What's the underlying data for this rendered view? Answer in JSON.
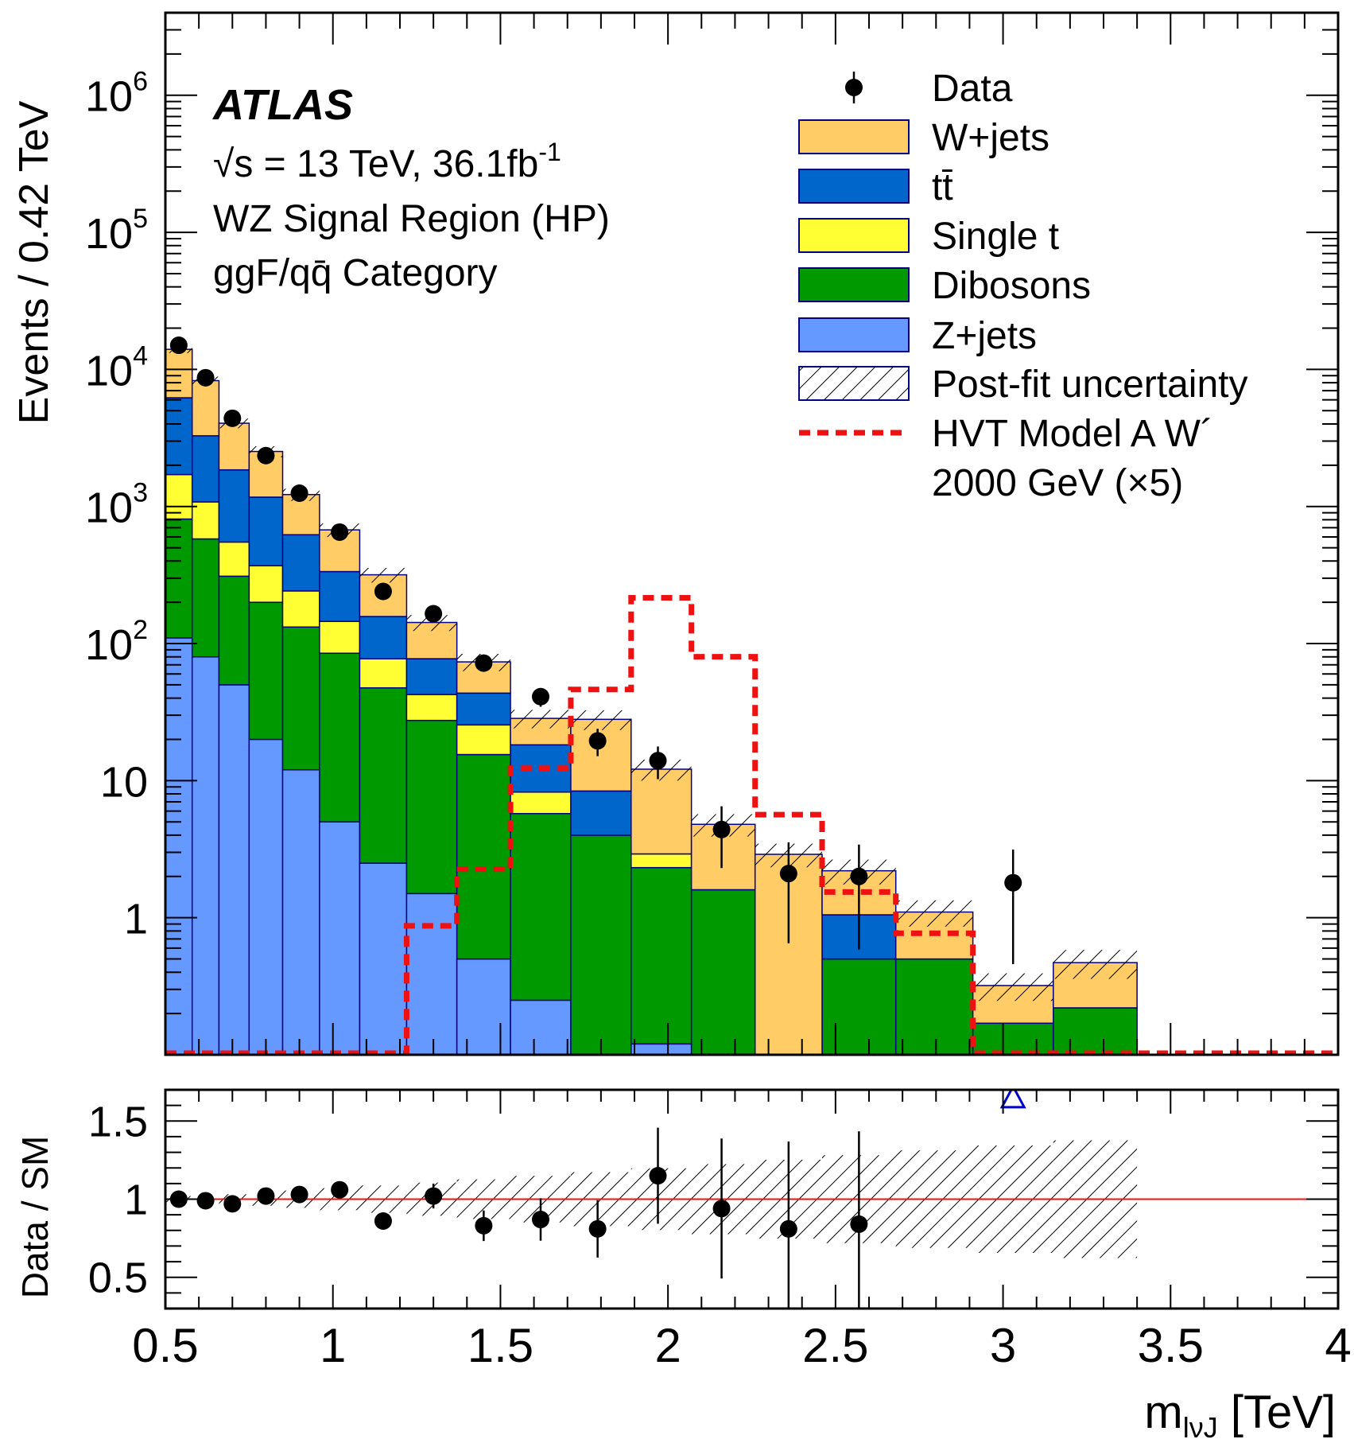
{
  "chart_data": {
    "type": "bar",
    "experiment_label": "ATLAS",
    "info_lines": [
      "√s = 13 TeV, 36.1fb",
      "WZ Signal Region (HP)",
      "ggF/qq̄ Category"
    ],
    "lumi_superscript": "-1",
    "ylabel": "Events / 0.42 TeV",
    "ratio_ylabel": "Data / SM",
    "xlabel": "m",
    "xlabel_sub": "lνJ",
    "xlabel_unit": "[TeV]",
    "xlim": [
      0.5,
      4.0
    ],
    "ylim": [
      0.1,
      4000000
    ],
    "ylog": true,
    "ratio_ylim": [
      0.3,
      1.7
    ],
    "x_ticks": [
      "0.5",
      "1",
      "1.5",
      "2",
      "2.5",
      "3",
      "3.5",
      "4"
    ],
    "x_tick_values": [
      0.5,
      1,
      1.5,
      2,
      2.5,
      3,
      3.5,
      4
    ],
    "y_ticks": [
      {
        "value": 1000000,
        "base": "10",
        "exp": "6"
      },
      {
        "value": 100000,
        "base": "10",
        "exp": "5"
      },
      {
        "value": 10000,
        "base": "10",
        "exp": "4"
      },
      {
        "value": 1000,
        "base": "10",
        "exp": "3"
      },
      {
        "value": 100,
        "base": "10",
        "exp": "2"
      },
      {
        "value": 10,
        "base": "10",
        "exp": ""
      },
      {
        "value": 1,
        "base": "1",
        "exp": ""
      }
    ],
    "ratio_y_ticks": [
      "0.5",
      "1",
      "1.5"
    ],
    "ratio_y_tick_values": [
      0.5,
      1,
      1.5
    ],
    "bin_edges": [
      0.5,
      0.58,
      0.66,
      0.75,
      0.85,
      0.96,
      1.08,
      1.22,
      1.37,
      1.53,
      1.71,
      1.89,
      2.07,
      2.26,
      2.46,
      2.68,
      2.91,
      3.15,
      3.4,
      3.65,
      3.9,
      4.0
    ],
    "legend": [
      {
        "label": "Data",
        "kind": "data"
      },
      {
        "label": "W+jets",
        "kind": "fill",
        "color": "#ffcc66"
      },
      {
        "label": "tt̄",
        "kind": "fill",
        "color": "#0066cc"
      },
      {
        "label": "Single t",
        "kind": "fill",
        "color": "#ffff33"
      },
      {
        "label": "Dibosons",
        "kind": "fill",
        "color": "#009900"
      },
      {
        "label": "Z+jets",
        "kind": "fill",
        "color": "#6699ff"
      },
      {
        "label": "Post-fit uncertainty",
        "kind": "hatch"
      },
      {
        "label": "HVT Model A W´",
        "label2": "2000 GeV (×5)",
        "kind": "dashed",
        "color": "#ee1111"
      }
    ],
    "series": [
      {
        "name": "Z+jets",
        "color": "#6699ff",
        "values": [
          110,
          80,
          50,
          20,
          12,
          5,
          2.5,
          1.5,
          0.5,
          0.25,
          0.0,
          0.12,
          0.0,
          0.0,
          0.0,
          0.0,
          0.0,
          0.0,
          0.0,
          0.0,
          0.0
        ]
      },
      {
        "name": "Dibosons",
        "color": "#009900",
        "values": [
          700,
          500,
          260,
          180,
          120,
          80,
          45,
          26,
          15,
          5.5,
          4.0,
          2.2,
          1.6,
          0.0,
          0.5,
          0.5,
          0.17,
          0.22,
          0.0,
          0.0,
          0.0
        ]
      },
      {
        "name": "Single t",
        "color": "#ffff33",
        "values": [
          900,
          500,
          240,
          170,
          110,
          60,
          30,
          15,
          10,
          2.5,
          0.0,
          0.6,
          0.0,
          0.0,
          0.0,
          0.0,
          0.0,
          0.0,
          0.0,
          0.0,
          0.0
        ]
      },
      {
        "name": "tt̄",
        "color": "#0066cc",
        "values": [
          4500,
          2200,
          1300,
          800,
          380,
          190,
          80,
          35,
          18,
          10,
          4.4,
          0.0,
          0.0,
          0.0,
          0.55,
          0.0,
          0.0,
          0.0,
          0.0,
          0.0,
          0.0
        ]
      },
      {
        "name": "W+jets",
        "color": "#ffcc66",
        "values": [
          7800,
          5000,
          2200,
          1350,
          600,
          340,
          160,
          65,
          30,
          10.2,
          19.6,
          9.2,
          3.2,
          2.9,
          1.15,
          0.6,
          0.15,
          0.25,
          0.0,
          0.0,
          0.0
        ]
      }
    ],
    "signal": {
      "name": "HVT Model A W´",
      "values": [
        0.1,
        0.1,
        0.1,
        0.1,
        0.1,
        0.1,
        0.1,
        0.85,
        2.2,
        12,
        45,
        210,
        78,
        5.5,
        1.5,
        0.75,
        0.1,
        0.1,
        0.1,
        0.1,
        0.1
      ]
    },
    "data": [
      {
        "x": 0.54,
        "y": 15000
      },
      {
        "x": 0.62,
        "y": 8700
      },
      {
        "x": 0.7,
        "y": 4400
      },
      {
        "x": 0.8,
        "y": 2350
      },
      {
        "x": 0.9,
        "y": 1250
      },
      {
        "x": 1.02,
        "y": 650
      },
      {
        "x": 1.15,
        "y": 240
      },
      {
        "x": 1.3,
        "y": 165
      },
      {
        "x": 1.45,
        "y": 72
      },
      {
        "x": 1.62,
        "y": 41
      },
      {
        "x": 1.79,
        "y": 19.5
      },
      {
        "x": 1.97,
        "y": 14
      },
      {
        "x": 2.16,
        "y": 4.4
      },
      {
        "x": 2.36,
        "y": 2.1
      },
      {
        "x": 2.57,
        "y": 2.0
      },
      {
        "x": 3.03,
        "y": 1.8
      }
    ],
    "ratio": [
      {
        "x": 0.54,
        "y": 1.0
      },
      {
        "x": 0.62,
        "y": 0.99
      },
      {
        "x": 0.7,
        "y": 0.97
      },
      {
        "x": 0.8,
        "y": 1.02
      },
      {
        "x": 0.9,
        "y": 1.03
      },
      {
        "x": 1.02,
        "y": 1.06
      },
      {
        "x": 1.15,
        "y": 0.86
      },
      {
        "x": 1.3,
        "y": 1.02
      },
      {
        "x": 1.45,
        "y": 0.83
      },
      {
        "x": 1.62,
        "y": 0.87
      },
      {
        "x": 1.79,
        "y": 0.81
      },
      {
        "x": 1.97,
        "y": 1.15
      },
      {
        "x": 2.16,
        "y": 0.94
      },
      {
        "x": 2.36,
        "y": 0.81
      },
      {
        "x": 2.57,
        "y": 0.84
      }
    ],
    "ratio_overflow_marker": {
      "x": 3.03,
      "y": 1.65,
      "color": "#0000cc"
    },
    "ratio_reference": 1.0
  }
}
